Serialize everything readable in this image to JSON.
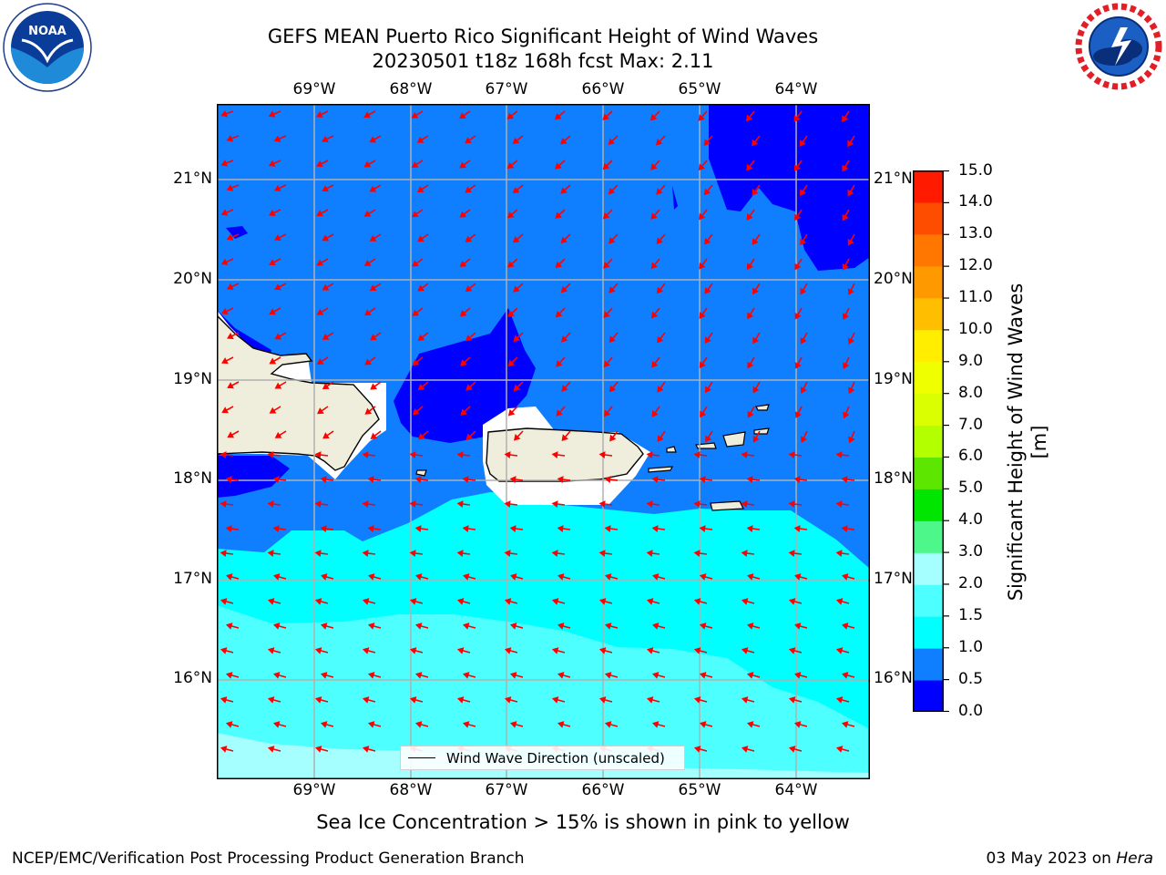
{
  "title": {
    "line1": "GEFS MEAN Puerto Rico Significant Height of Wind Waves",
    "line2": "20230501 t18z 168h fcst   Max: 2.11"
  },
  "map": {
    "lon_ticks": [
      "69°W",
      "68°W",
      "67°W",
      "66°W",
      "65°W",
      "64°W"
    ],
    "lat_ticks": [
      "21°N",
      "20°N",
      "19°N",
      "18°N",
      "17°N",
      "16°N"
    ],
    "gridlines": true,
    "region": "Puerto Rico / Hispaniola / Virgin Islands",
    "colors": {
      "land": "#efeddc",
      "very_low": "#0000ff",
      "low": "#0f7fff",
      "mid": "#00ffff",
      "upper": "#4dffff",
      "high": "#a6ffff",
      "arrows": "#ff0000"
    }
  },
  "legend": {
    "label": "Wind Wave Direction (unscaled)"
  },
  "colorbar": {
    "label": "Significant Height of Wind Waves [m]",
    "ticks": [
      "15.0",
      "14.0",
      "13.0",
      "12.0",
      "11.0",
      "10.0",
      "9.0",
      "8.0",
      "7.0",
      "6.0",
      "5.0",
      "4.0",
      "3.0",
      "2.0",
      "1.5",
      "1.0",
      "0.5",
      "0.0"
    ],
    "bins": [
      {
        "from": 0.0,
        "to": 0.5,
        "color": "#0000ff"
      },
      {
        "from": 0.5,
        "to": 1.0,
        "color": "#0f7fff"
      },
      {
        "from": 1.0,
        "to": 1.5,
        "color": "#00ffff"
      },
      {
        "from": 1.5,
        "to": 2.0,
        "color": "#4dffff"
      },
      {
        "from": 2.0,
        "to": 3.0,
        "color": "#a6ffff"
      },
      {
        "from": 3.0,
        "to": 4.0,
        "color": "#4df78a"
      },
      {
        "from": 4.0,
        "to": 5.0,
        "color": "#00e600"
      },
      {
        "from": 5.0,
        "to": 6.0,
        "color": "#5ce600"
      },
      {
        "from": 6.0,
        "to": 7.0,
        "color": "#b3ff00"
      },
      {
        "from": 7.0,
        "to": 8.0,
        "color": "#d9ff00"
      },
      {
        "from": 8.0,
        "to": 9.0,
        "color": "#f0ff00"
      },
      {
        "from": 9.0,
        "to": 10.0,
        "color": "#ffee00"
      },
      {
        "from": 10.0,
        "to": 11.0,
        "color": "#ffbf00"
      },
      {
        "from": 11.0,
        "to": 12.0,
        "color": "#ff9900"
      },
      {
        "from": 12.0,
        "to": 13.0,
        "color": "#ff7700"
      },
      {
        "from": 13.0,
        "to": 14.0,
        "color": "#ff4d00"
      },
      {
        "from": 14.0,
        "to": 15.0,
        "color": "#ff1a00"
      }
    ]
  },
  "note": "Sea Ice Concentration > 15% is shown in pink to yellow",
  "footer": {
    "left": "NCEP/EMC/Verification Post Processing Product Generation Branch",
    "right_prefix": "03 May 2023 on ",
    "right_host": "Hera"
  },
  "logos": {
    "left": "NOAA",
    "right_text": "NATIONAL WEATHER SERVICE"
  }
}
